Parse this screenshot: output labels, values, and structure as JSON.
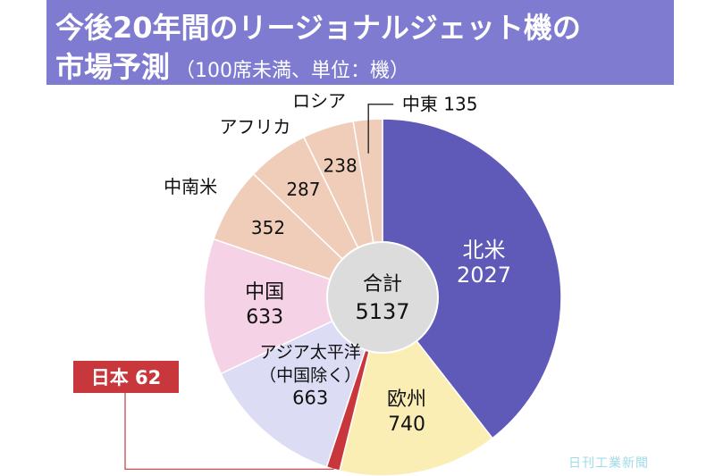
{
  "title": {
    "line1": "今後20年間のリージョナルジェット機の",
    "line2": "市場予測",
    "unit_note": "（100席未満、単位：機）"
  },
  "credit": "日刊工業新聞",
  "chart_data": {
    "type": "pie",
    "style": "donut",
    "title": "今後20年間のリージョナルジェット機の市場予測（100席未満、単位：機）",
    "center_label": "合計",
    "center_value": "5137",
    "total": 5137,
    "order": "clockwise from 12 o'clock",
    "slices": [
      {
        "key": "na",
        "label": "北米",
        "value": 2027,
        "color": "#5f59b8"
      },
      {
        "key": "eu",
        "label": "欧州",
        "value": 740,
        "color": "#fbeeb4"
      },
      {
        "key": "jp",
        "label": "日本",
        "value": 62,
        "color": "#c8373c"
      },
      {
        "key": "ap",
        "label": "アジア太平洋",
        "sublabel": "（中国除く）",
        "value": 663,
        "color": "#dcdcf5"
      },
      {
        "key": "cn",
        "label": "中国",
        "value": 633,
        "color": "#f6d2e6"
      },
      {
        "key": "latam",
        "label": "中南米",
        "value": 352,
        "color": "#f0cdb9"
      },
      {
        "key": "africa",
        "label": "アフリカ",
        "value": 287,
        "color": "#f0cdb9"
      },
      {
        "key": "russia",
        "label": "ロシア",
        "value": 238,
        "color": "#f0cdb9"
      },
      {
        "key": "me",
        "label": "中東",
        "value": 135,
        "color": "#f0cdb9"
      }
    ],
    "callouts": {
      "jp": "日本 62",
      "me": "中東 135"
    },
    "value_text": {
      "na": "2027",
      "eu": "740",
      "ap": "663",
      "cn": "633",
      "latam": "352",
      "africa": "287",
      "russia": "238"
    }
  }
}
